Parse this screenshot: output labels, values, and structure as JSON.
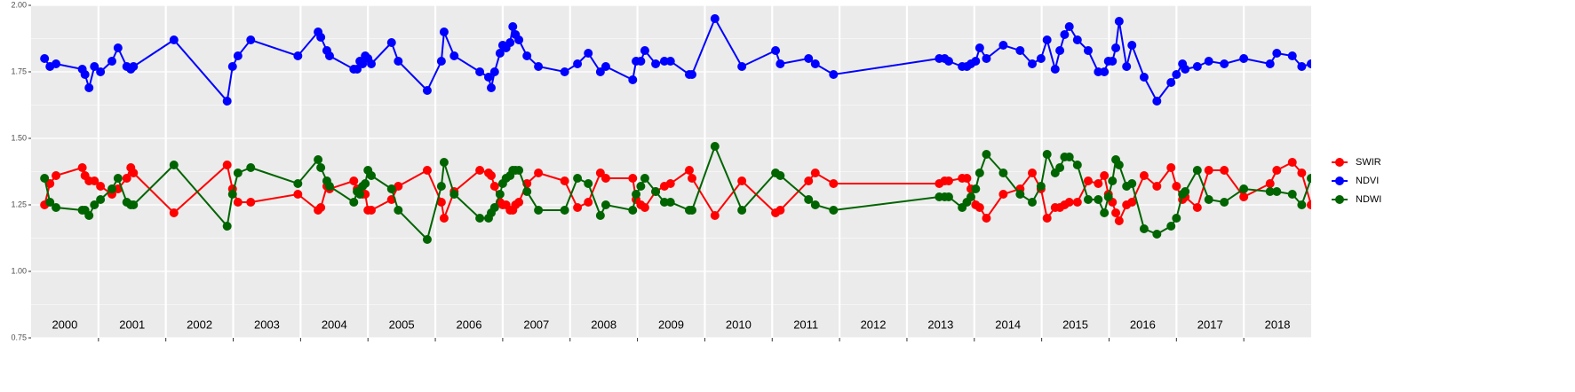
{
  "chart_data": {
    "type": "line",
    "x": [
      2000.2,
      2000.28,
      2000.37,
      2000.76,
      2000.8,
      2000.86,
      2000.94,
      2001.03,
      2001.2,
      2001.29,
      2001.42,
      2001.48,
      2001.52,
      2002.12,
      2002.91,
      2002.99,
      2003.07,
      2003.26,
      2003.96,
      2004.26,
      2004.3,
      2004.39,
      2004.43,
      2004.79,
      2004.84,
      2004.88,
      2004.92,
      2004.96,
      2005.0,
      2005.05,
      2005.35,
      2005.45,
      2005.88,
      2006.09,
      2006.13,
      2006.28,
      2006.66,
      2006.79,
      2006.83,
      2006.88,
      2006.96,
      2007.0,
      2007.05,
      2007.11,
      2007.15,
      2007.19,
      2007.24,
      2007.36,
      2007.53,
      2007.92,
      2008.11,
      2008.27,
      2008.45,
      2008.53,
      2008.93,
      2008.98,
      2009.05,
      2009.11,
      2009.27,
      2009.4,
      2009.49,
      2009.77,
      2009.81,
      2010.15,
      2010.55,
      2011.05,
      2011.12,
      2011.54,
      2011.64,
      2011.91,
      2013.48,
      2013.56,
      2013.62,
      2013.82,
      2013.89,
      2013.95,
      2014.02,
      2014.08,
      2014.18,
      2014.43,
      2014.68,
      2014.86,
      2014.99,
      2015.08,
      2015.2,
      2015.27,
      2015.34,
      2015.41,
      2015.53,
      2015.69,
      2015.84,
      2015.93,
      2015.99,
      2016.05,
      2016.1,
      2016.15,
      2016.26,
      2016.34,
      2016.52,
      2016.71,
      2016.92,
      2017.0,
      2017.09,
      2017.13,
      2017.31,
      2017.48,
      2017.71,
      2018.0,
      2018.39,
      2018.49,
      2018.72,
      2018.86,
      2019.0
    ],
    "series": [
      {
        "name": "SWIR",
        "color": "#ff0000",
        "values": [
          1.25,
          1.33,
          1.36,
          1.39,
          1.36,
          1.34,
          1.34,
          1.32,
          1.29,
          1.31,
          1.35,
          1.39,
          1.37,
          1.22,
          1.4,
          1.31,
          1.26,
          1.26,
          1.29,
          1.23,
          1.24,
          1.32,
          1.31,
          1.34,
          1.31,
          1.31,
          1.29,
          1.29,
          1.23,
          1.23,
          1.27,
          1.32,
          1.38,
          1.26,
          1.2,
          1.3,
          1.38,
          1.37,
          1.36,
          1.32,
          1.26,
          1.25,
          1.25,
          1.23,
          1.23,
          1.25,
          1.26,
          1.33,
          1.37,
          1.34,
          1.24,
          1.26,
          1.37,
          1.35,
          1.35,
          1.27,
          1.25,
          1.24,
          1.3,
          1.32,
          1.33,
          1.38,
          1.35,
          1.21,
          1.34,
          1.22,
          1.23,
          1.34,
          1.37,
          1.33,
          1.33,
          1.34,
          1.34,
          1.35,
          1.35,
          1.31,
          1.25,
          1.24,
          1.2,
          1.29,
          1.31,
          1.37,
          1.31,
          1.2,
          1.24,
          1.24,
          1.25,
          1.26,
          1.26,
          1.34,
          1.33,
          1.36,
          1.29,
          1.26,
          1.22,
          1.19,
          1.25,
          1.26,
          1.36,
          1.32,
          1.39,
          1.32,
          1.27,
          1.28,
          1.24,
          1.38,
          1.38,
          1.28,
          1.33,
          1.38,
          1.41,
          1.37,
          1.25
        ]
      },
      {
        "name": "NDVI",
        "color": "#0000ff",
        "values": [
          1.8,
          1.77,
          1.78,
          1.76,
          1.74,
          1.69,
          1.77,
          1.75,
          1.79,
          1.84,
          1.77,
          1.76,
          1.77,
          1.87,
          1.64,
          1.77,
          1.81,
          1.87,
          1.81,
          1.9,
          1.88,
          1.83,
          1.81,
          1.76,
          1.76,
          1.79,
          1.78,
          1.81,
          1.8,
          1.78,
          1.86,
          1.79,
          1.68,
          1.79,
          1.9,
          1.81,
          1.75,
          1.73,
          1.69,
          1.75,
          1.82,
          1.85,
          1.84,
          1.86,
          1.92,
          1.89,
          1.87,
          1.81,
          1.77,
          1.75,
          1.78,
          1.82,
          1.75,
          1.77,
          1.72,
          1.79,
          1.79,
          1.83,
          1.78,
          1.79,
          1.79,
          1.74,
          1.74,
          1.95,
          1.77,
          1.83,
          1.78,
          1.8,
          1.78,
          1.74,
          1.8,
          1.8,
          1.79,
          1.77,
          1.77,
          1.78,
          1.79,
          1.84,
          1.8,
          1.85,
          1.83,
          1.78,
          1.8,
          1.87,
          1.76,
          1.83,
          1.89,
          1.92,
          1.87,
          1.83,
          1.75,
          1.75,
          1.79,
          1.79,
          1.84,
          1.94,
          1.77,
          1.85,
          1.73,
          1.64,
          1.71,
          1.74,
          1.78,
          1.76,
          1.77,
          1.79,
          1.78,
          1.8,
          1.78,
          1.82,
          1.81,
          1.77,
          1.78
        ]
      },
      {
        "name": "NDWI",
        "color": "#006400",
        "values": [
          1.35,
          1.26,
          1.24,
          1.23,
          1.23,
          1.21,
          1.25,
          1.27,
          1.31,
          1.35,
          1.26,
          1.25,
          1.25,
          1.4,
          1.17,
          1.29,
          1.37,
          1.39,
          1.33,
          1.42,
          1.39,
          1.34,
          1.32,
          1.26,
          1.3,
          1.29,
          1.32,
          1.33,
          1.38,
          1.36,
          1.31,
          1.23,
          1.12,
          1.32,
          1.41,
          1.29,
          1.2,
          1.2,
          1.22,
          1.24,
          1.29,
          1.33,
          1.35,
          1.36,
          1.38,
          1.38,
          1.38,
          1.3,
          1.23,
          1.23,
          1.35,
          1.33,
          1.21,
          1.25,
          1.23,
          1.29,
          1.32,
          1.35,
          1.3,
          1.26,
          1.26,
          1.23,
          1.23,
          1.47,
          1.23,
          1.37,
          1.36,
          1.27,
          1.25,
          1.23,
          1.28,
          1.28,
          1.28,
          1.24,
          1.26,
          1.28,
          1.31,
          1.37,
          1.44,
          1.37,
          1.29,
          1.26,
          1.32,
          1.44,
          1.37,
          1.39,
          1.43,
          1.43,
          1.4,
          1.27,
          1.27,
          1.22,
          1.28,
          1.34,
          1.42,
          1.4,
          1.32,
          1.33,
          1.16,
          1.14,
          1.17,
          1.2,
          1.29,
          1.3,
          1.38,
          1.27,
          1.26,
          1.31,
          1.3,
          1.3,
          1.29,
          1.25,
          1.35
        ]
      }
    ],
    "xlim": [
      2000,
      2019
    ],
    "xticks": [
      2001,
      2002,
      2003,
      2004,
      2005,
      2006,
      2007,
      2008,
      2009,
      2010,
      2011,
      2012,
      2013,
      2014,
      2015,
      2016,
      2017,
      2018
    ],
    "ylim": [
      0.75,
      2.0
    ],
    "yticks": [
      {
        "value": 0.75,
        "label": "0.75"
      },
      {
        "value": 1.0,
        "label": "1.00"
      },
      {
        "value": 1.25,
        "label": "1.25"
      },
      {
        "value": 1.5,
        "label": "1.50"
      },
      {
        "value": 1.75,
        "label": "1.75"
      },
      {
        "value": 2.0,
        "label": "2.00"
      }
    ],
    "annotations": [
      {
        "text": "2000",
        "x": 2000.5
      },
      {
        "text": "2001",
        "x": 2001.5
      },
      {
        "text": "2002",
        "x": 2002.5
      },
      {
        "text": "2003",
        "x": 2003.5
      },
      {
        "text": "2004",
        "x": 2004.5
      },
      {
        "text": "2005",
        "x": 2005.5
      },
      {
        "text": "2006",
        "x": 2006.5
      },
      {
        "text": "2007",
        "x": 2007.5
      },
      {
        "text": "2008",
        "x": 2008.5
      },
      {
        "text": "2009",
        "x": 2009.5
      },
      {
        "text": "2010",
        "x": 2010.5
      },
      {
        "text": "2011",
        "x": 2011.5
      },
      {
        "text": "2012",
        "x": 2012.5
      },
      {
        "text": "2013",
        "x": 2013.5
      },
      {
        "text": "2014",
        "x": 2014.5
      },
      {
        "text": "2015",
        "x": 2015.5
      },
      {
        "text": "2016",
        "x": 2016.5
      },
      {
        "text": "2017",
        "x": 2017.5
      },
      {
        "text": "2018",
        "x": 2018.5
      }
    ],
    "grid": true
  }
}
